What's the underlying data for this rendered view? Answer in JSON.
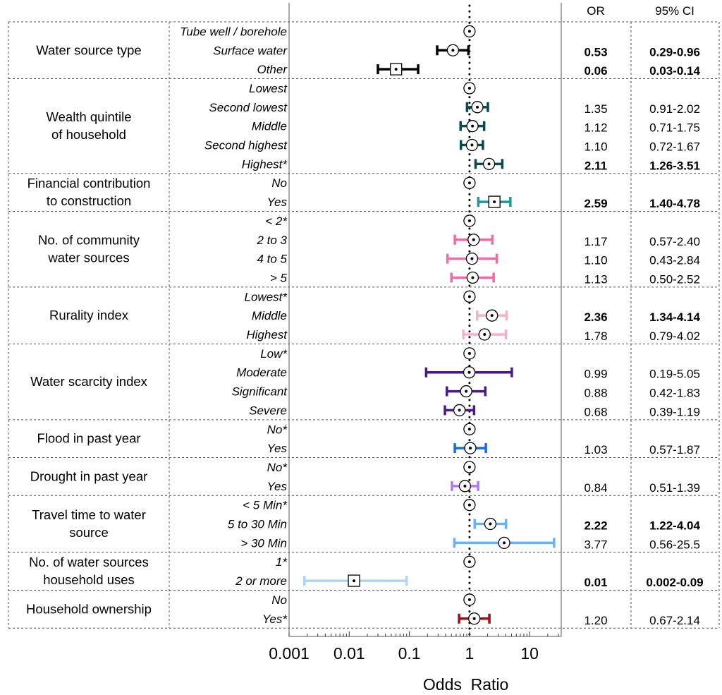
{
  "chart_data": {
    "type": "forest",
    "xlabel": "Odds  Ratio",
    "xscale": "log",
    "xlim": [
      0.001,
      30
    ],
    "xticks": [
      "0.001",
      "0.01",
      "0.1",
      "1",
      "10"
    ],
    "reference_line": 1,
    "header": {
      "or": "OR",
      "ci": "95% CI"
    },
    "groups": [
      {
        "label": [
          "Water source type"
        ],
        "color": "#000000",
        "rows": [
          {
            "level": "Tube well / borehole",
            "or": 1,
            "lo": null,
            "hi": null,
            "or_text": "",
            "ci_text": "",
            "bold": false,
            "marker": "circle"
          },
          {
            "level": "Surface water",
            "or": 0.53,
            "lo": 0.29,
            "hi": 0.96,
            "or_text": "0.53",
            "ci_text": "0.29-0.96",
            "bold": true,
            "marker": "circle"
          },
          {
            "level": "Other",
            "or": 0.06,
            "lo": 0.03,
            "hi": 0.14,
            "or_text": "0.06",
            "ci_text": "0.03-0.14",
            "bold": true,
            "marker": "square"
          }
        ]
      },
      {
        "label": [
          "Wealth quintile",
          "of household"
        ],
        "color": "#0a4a4a",
        "rows": [
          {
            "level": "Lowest",
            "or": 1,
            "lo": null,
            "hi": null,
            "or_text": "",
            "ci_text": "",
            "bold": false,
            "marker": "circle"
          },
          {
            "level": "Second lowest",
            "or": 1.35,
            "lo": 0.91,
            "hi": 2.02,
            "or_text": "1.35",
            "ci_text": "0.91-2.02",
            "bold": false,
            "marker": "circle"
          },
          {
            "level": "Middle",
            "or": 1.12,
            "lo": 0.71,
            "hi": 1.75,
            "or_text": "1.12",
            "ci_text": "0.71-1.75",
            "bold": false,
            "marker": "circle"
          },
          {
            "level": "Second highest",
            "or": 1.1,
            "lo": 0.72,
            "hi": 1.67,
            "or_text": "1.10",
            "ci_text": "0.72-1.67",
            "bold": false,
            "marker": "circle"
          },
          {
            "level": "Highest*",
            "or": 2.11,
            "lo": 1.26,
            "hi": 3.51,
            "or_text": "2.11",
            "ci_text": "1.26-3.51",
            "bold": true,
            "marker": "circle"
          }
        ]
      },
      {
        "label": [
          "Financial contribution",
          "to construction"
        ],
        "color": "#1a9a9a",
        "rows": [
          {
            "level": "No",
            "or": 1,
            "lo": null,
            "hi": null,
            "or_text": "",
            "ci_text": "",
            "bold": false,
            "marker": "circle"
          },
          {
            "level": "Yes",
            "or": 2.59,
            "lo": 1.4,
            "hi": 4.78,
            "or_text": "2.59",
            "ci_text": "1.40-4.78",
            "bold": true,
            "marker": "square"
          }
        ]
      },
      {
        "label": [
          "No. of community",
          "water sources"
        ],
        "color": "#f06aa8",
        "rows": [
          {
            "level": "< 2*",
            "or": 1,
            "lo": null,
            "hi": null,
            "or_text": "",
            "ci_text": "",
            "bold": false,
            "marker": "circle"
          },
          {
            "level": "2 to 3",
            "or": 1.17,
            "lo": 0.57,
            "hi": 2.4,
            "or_text": "1.17",
            "ci_text": "0.57-2.40",
            "bold": false,
            "marker": "circle"
          },
          {
            "level": "4 to 5",
            "or": 1.1,
            "lo": 0.43,
            "hi": 2.84,
            "or_text": "1.10",
            "ci_text": "0.43-2.84",
            "bold": false,
            "marker": "circle"
          },
          {
            "level": "> 5",
            "or": 1.13,
            "lo": 0.5,
            "hi": 2.52,
            "or_text": "1.13",
            "ci_text": "0.50-2.52",
            "bold": false,
            "marker": "circle"
          }
        ]
      },
      {
        "label": [
          "Rurality index"
        ],
        "color": "#f4b0cc",
        "rows": [
          {
            "level": "Lowest*",
            "or": 1,
            "lo": null,
            "hi": null,
            "or_text": "",
            "ci_text": "",
            "bold": false,
            "marker": "circle"
          },
          {
            "level": "Middle",
            "or": 2.36,
            "lo": 1.34,
            "hi": 4.14,
            "or_text": "2.36",
            "ci_text": "1.34-4.14",
            "bold": true,
            "marker": "circle"
          },
          {
            "level": "Highest",
            "or": 1.78,
            "lo": 0.79,
            "hi": 4.02,
            "or_text": "1.78",
            "ci_text": "0.79-4.02",
            "bold": false,
            "marker": "circle"
          }
        ]
      },
      {
        "label": [
          "Water scarcity index"
        ],
        "color": "#4a1a8a",
        "rows": [
          {
            "level": "Low*",
            "or": 1,
            "lo": null,
            "hi": null,
            "or_text": "",
            "ci_text": "",
            "bold": false,
            "marker": "circle"
          },
          {
            "level": "Moderate",
            "or": 0.99,
            "lo": 0.19,
            "hi": 5.05,
            "or_text": "0.99",
            "ci_text": "0.19-5.05",
            "bold": false,
            "marker": "circle"
          },
          {
            "level": "Significant",
            "or": 0.88,
            "lo": 0.42,
            "hi": 1.83,
            "or_text": "0.88",
            "ci_text": "0.42-1.83",
            "bold": false,
            "marker": "circle"
          },
          {
            "level": "Severe",
            "or": 0.68,
            "lo": 0.39,
            "hi": 1.19,
            "or_text": "0.68",
            "ci_text": "0.39-1.19",
            "bold": false,
            "marker": "circle"
          }
        ]
      },
      {
        "label": [
          "Flood in past year"
        ],
        "color": "#1a6ad8",
        "rows": [
          {
            "level": "No*",
            "or": 1,
            "lo": null,
            "hi": null,
            "or_text": "",
            "ci_text": "",
            "bold": false,
            "marker": "circle"
          },
          {
            "level": "Yes",
            "or": 1.03,
            "lo": 0.57,
            "hi": 1.87,
            "or_text": "1.03",
            "ci_text": "0.57-1.87",
            "bold": false,
            "marker": "circle"
          }
        ]
      },
      {
        "label": [
          "Drought in past year"
        ],
        "color": "#b07aee",
        "rows": [
          {
            "level": "No*",
            "or": 1,
            "lo": null,
            "hi": null,
            "or_text": "",
            "ci_text": "",
            "bold": false,
            "marker": "circle"
          },
          {
            "level": "Yes",
            "or": 0.84,
            "lo": 0.51,
            "hi": 1.39,
            "or_text": "0.84",
            "ci_text": "0.51-1.39",
            "bold": false,
            "marker": "circle"
          }
        ]
      },
      {
        "label": [
          "Travel time to water",
          "source"
        ],
        "color": "#6ab0f4",
        "rows": [
          {
            "level": "< 5 Min*",
            "or": 1,
            "lo": null,
            "hi": null,
            "or_text": "",
            "ci_text": "",
            "bold": false,
            "marker": "circle"
          },
          {
            "level": "5 to 30 Min",
            "or": 2.22,
            "lo": 1.22,
            "hi": 4.04,
            "or_text": "2.22",
            "ci_text": "1.22-4.04",
            "bold": true,
            "marker": "circle"
          },
          {
            "level": "> 30 Min",
            "or": 3.77,
            "lo": 0.56,
            "hi": 25.5,
            "or_text": "3.77",
            "ci_text": "0.56-25.5",
            "bold": false,
            "marker": "circle"
          }
        ]
      },
      {
        "label": [
          "No. of water sources",
          "household uses"
        ],
        "color": "#b0d4f4",
        "rows": [
          {
            "level": "1*",
            "or": 1,
            "lo": null,
            "hi": null,
            "or_text": "",
            "ci_text": "",
            "bold": false,
            "marker": "circle"
          },
          {
            "level": "2 or more",
            "or": 0.012,
            "lo": 0.0018,
            "hi": 0.09,
            "or_text": "0.01",
            "ci_text": "0.002-0.09",
            "bold": true,
            "marker": "square"
          }
        ]
      },
      {
        "label": [
          "Household ownership"
        ],
        "color": "#a01010",
        "rows": [
          {
            "level": "No",
            "or": 1,
            "lo": null,
            "hi": null,
            "or_text": "",
            "ci_text": "",
            "bold": false,
            "marker": "circle"
          },
          {
            "level": "Yes*",
            "or": 1.2,
            "lo": 0.67,
            "hi": 2.14,
            "or_text": "1.20",
            "ci_text": "0.67-2.14",
            "bold": false,
            "marker": "circle"
          }
        ]
      }
    ]
  }
}
